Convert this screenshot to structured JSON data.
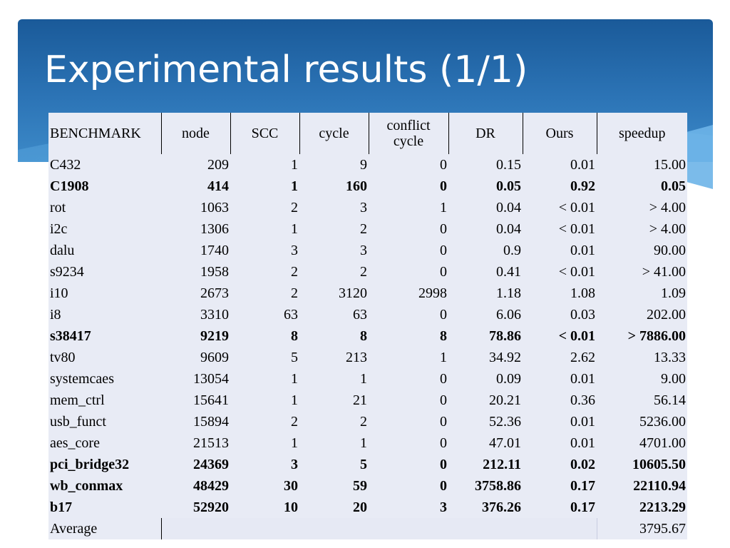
{
  "slide": {
    "title": "Experimental results (1/1)"
  },
  "colors": {
    "banner_top": "#1a5a99",
    "banner_bottom": "#3d8ac8",
    "table_bg": "#e8ebf5",
    "text": "#000000"
  },
  "table": {
    "headers": [
      "BENCHMARK",
      "node",
      "SCC",
      "cycle",
      "conflict cycle",
      "DR",
      "Ours",
      "speedup"
    ],
    "rows": [
      {
        "bold": false,
        "cells": [
          "C432",
          "209",
          "1",
          "9",
          "0",
          "0.15",
          "0.01",
          "15.00"
        ]
      },
      {
        "bold": true,
        "cells": [
          "C1908",
          "414",
          "1",
          "160",
          "0",
          "0.05",
          "0.92",
          "0.05"
        ]
      },
      {
        "bold": false,
        "cells": [
          "rot",
          "1063",
          "2",
          "3",
          "1",
          "0.04",
          "< 0.01",
          "> 4.00"
        ]
      },
      {
        "bold": false,
        "cells": [
          "i2c",
          "1306",
          "1",
          "2",
          "0",
          "0.04",
          "< 0.01",
          "> 4.00"
        ]
      },
      {
        "bold": false,
        "cells": [
          "dalu",
          "1740",
          "3",
          "3",
          "0",
          "0.9",
          "0.01",
          "90.00"
        ]
      },
      {
        "bold": false,
        "cells": [
          "s9234",
          "1958",
          "2",
          "2",
          "0",
          "0.41",
          "< 0.01",
          "> 41.00"
        ]
      },
      {
        "bold": false,
        "cells": [
          "i10",
          "2673",
          "2",
          "3120",
          "2998",
          "1.18",
          "1.08",
          "1.09"
        ]
      },
      {
        "bold": false,
        "cells": [
          "i8",
          "3310",
          "63",
          "63",
          "0",
          "6.06",
          "0.03",
          "202.00"
        ]
      },
      {
        "bold": true,
        "cells": [
          "s38417",
          "9219",
          "8",
          "8",
          "8",
          "78.86",
          "< 0.01",
          "> 7886.00"
        ]
      },
      {
        "bold": false,
        "cells": [
          "tv80",
          "9609",
          "5",
          "213",
          "1",
          "34.92",
          "2.62",
          "13.33"
        ]
      },
      {
        "bold": false,
        "cells": [
          "systemcaes",
          "13054",
          "1",
          "1",
          "0",
          "0.09",
          "0.01",
          "9.00"
        ]
      },
      {
        "bold": false,
        "cells": [
          "mem_ctrl",
          "15641",
          "1",
          "21",
          "0",
          "20.21",
          "0.36",
          "56.14"
        ]
      },
      {
        "bold": false,
        "cells": [
          "usb_funct",
          "15894",
          "2",
          "2",
          "0",
          "52.36",
          "0.01",
          "5236.00"
        ]
      },
      {
        "bold": false,
        "cells": [
          "aes_core",
          "21513",
          "1",
          "1",
          "0",
          "47.01",
          "0.01",
          "4701.00"
        ]
      },
      {
        "bold": true,
        "cells": [
          "pci_bridge32",
          "24369",
          "3",
          "5",
          "0",
          "212.11",
          "0.02",
          "10605.50"
        ]
      },
      {
        "bold": true,
        "cells": [
          "wb_conmax",
          "48429",
          "30",
          "59",
          "0",
          "3758.86",
          "0.17",
          "22110.94"
        ]
      },
      {
        "bold": true,
        "cells": [
          "b17",
          "52920",
          "10",
          "20",
          "3",
          "376.26",
          "0.17",
          "2213.29"
        ]
      }
    ],
    "average": {
      "label": "Average",
      "speedup": "3795.67"
    }
  }
}
